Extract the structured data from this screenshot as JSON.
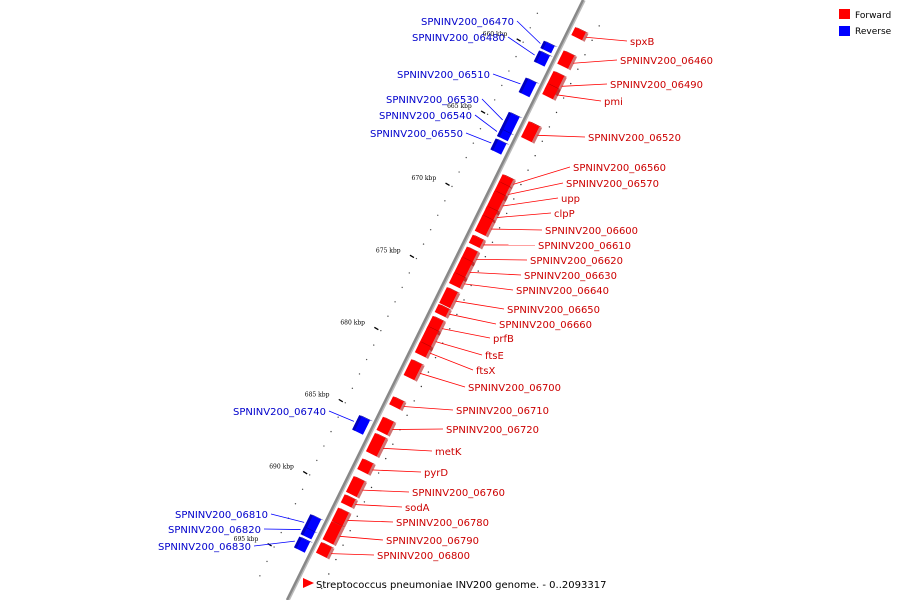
{
  "caption": "Streptococcus pneumoniae INV200 genome. - 0..2093317",
  "colors": {
    "forward": "#ff0000",
    "reverse": "#0000ff",
    "forward_label": "#cc0000",
    "reverse_label": "#0000cc",
    "axis": "#888888"
  },
  "legend": [
    {
      "label": "Forward",
      "color": "#ff0000"
    },
    {
      "label": "Reverse",
      "color": "#0000ff"
    }
  ],
  "ticks": [
    {
      "kbp": 660,
      "label": "660 kbp"
    },
    {
      "kbp": 665,
      "label": "665 kbp"
    },
    {
      "kbp": 670,
      "label": "670 kbp"
    },
    {
      "kbp": 675,
      "label": "675 kbp"
    },
    {
      "kbp": 680,
      "label": "680 kbp"
    },
    {
      "kbp": 685,
      "label": "685 kbp"
    },
    {
      "kbp": 690,
      "label": "690 kbp"
    },
    {
      "kbp": 695,
      "label": "695 kbp"
    }
  ],
  "reverse_genes": [
    {
      "name": "SPNINV200_06470",
      "kbp": 659.6
    },
    {
      "name": "SPNINV200_06480",
      "kbp": 660.4
    },
    {
      "name": "SPNINV200_06510",
      "kbp": 662.4
    },
    {
      "name": "SPNINV200_06530",
      "kbp": 664.9
    },
    {
      "name": "SPNINV200_06540",
      "kbp": 665.7
    },
    {
      "name": "SPNINV200_06550",
      "kbp": 666.5
    },
    {
      "name": "SPNINV200_06740",
      "kbp": 685.8
    },
    {
      "name": "SPNINV200_06810",
      "kbp": 692.8
    },
    {
      "name": "SPNINV200_06820",
      "kbp": 693.3
    },
    {
      "name": "SPNINV200_06830",
      "kbp": 694.1
    }
  ],
  "forward_genes": [
    {
      "name": "spxB",
      "kbp": 658.0
    },
    {
      "name": "SPNINV200_06460",
      "kbp": 659.8
    },
    {
      "name": "SPNINV200_06490",
      "kbp": 661.4
    },
    {
      "name": "pmi",
      "kbp": 662.0
    },
    {
      "name": "SPNINV200_06520",
      "kbp": 664.8
    },
    {
      "name": "SPNINV200_06560",
      "kbp": 668.2
    },
    {
      "name": "SPNINV200_06570",
      "kbp": 668.9
    },
    {
      "name": "upp",
      "kbp": 669.7
    },
    {
      "name": "clpP",
      "kbp": 670.5
    },
    {
      "name": "SPNINV200_06600",
      "kbp": 671.3
    },
    {
      "name": "SPNINV200_06610",
      "kbp": 672.4
    },
    {
      "name": "SPNINV200_06620",
      "kbp": 673.4
    },
    {
      "name": "SPNINV200_06630",
      "kbp": 674.3
    },
    {
      "name": "SPNINV200_06640",
      "kbp": 675.1
    },
    {
      "name": "SPNINV200_06650",
      "kbp": 676.3
    },
    {
      "name": "SPNINV200_06660",
      "kbp": 677.2
    },
    {
      "name": "prfB",
      "kbp": 678.2
    },
    {
      "name": "ftsE",
      "kbp": 679.1
    },
    {
      "name": "ftsX",
      "kbp": 679.9
    },
    {
      "name": "SPNINV200_06700",
      "kbp": 681.3
    },
    {
      "name": "SPNINV200_06710",
      "kbp": 683.6
    },
    {
      "name": "SPNINV200_06720",
      "kbp": 685.2
    },
    {
      "name": "metK",
      "kbp": 686.5
    },
    {
      "name": "pyrD",
      "kbp": 688.0
    },
    {
      "name": "SPNINV200_06760",
      "kbp": 689.4
    },
    {
      "name": "sodA",
      "kbp": 690.4
    },
    {
      "name": "SPNINV200_06780",
      "kbp": 691.5
    },
    {
      "name": "SPNINV200_06790",
      "kbp": 692.6
    },
    {
      "name": "SPNINV200_06800",
      "kbp": 693.8
    }
  ]
}
